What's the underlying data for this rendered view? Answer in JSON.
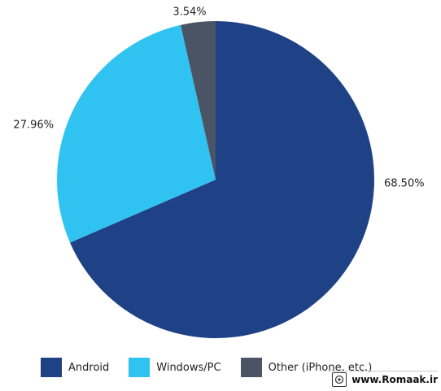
{
  "chart_data": {
    "type": "pie",
    "slices": [
      {
        "label": "Android",
        "value": 68.5,
        "display": "68.50%",
        "color": "#1f4287"
      },
      {
        "label": "Windows/PC",
        "value": 27.96,
        "display": "27.96%",
        "color": "#30c3f2"
      },
      {
        "label": "Other (iPhone, etc.)",
        "value": 3.54,
        "display": "3.54%",
        "color": "#4a5465"
      }
    ],
    "start_angle": "12 o'clock",
    "direction": "clockwise",
    "legend_position": "bottom"
  },
  "watermark": {
    "text": "www.Romaak.ir"
  }
}
